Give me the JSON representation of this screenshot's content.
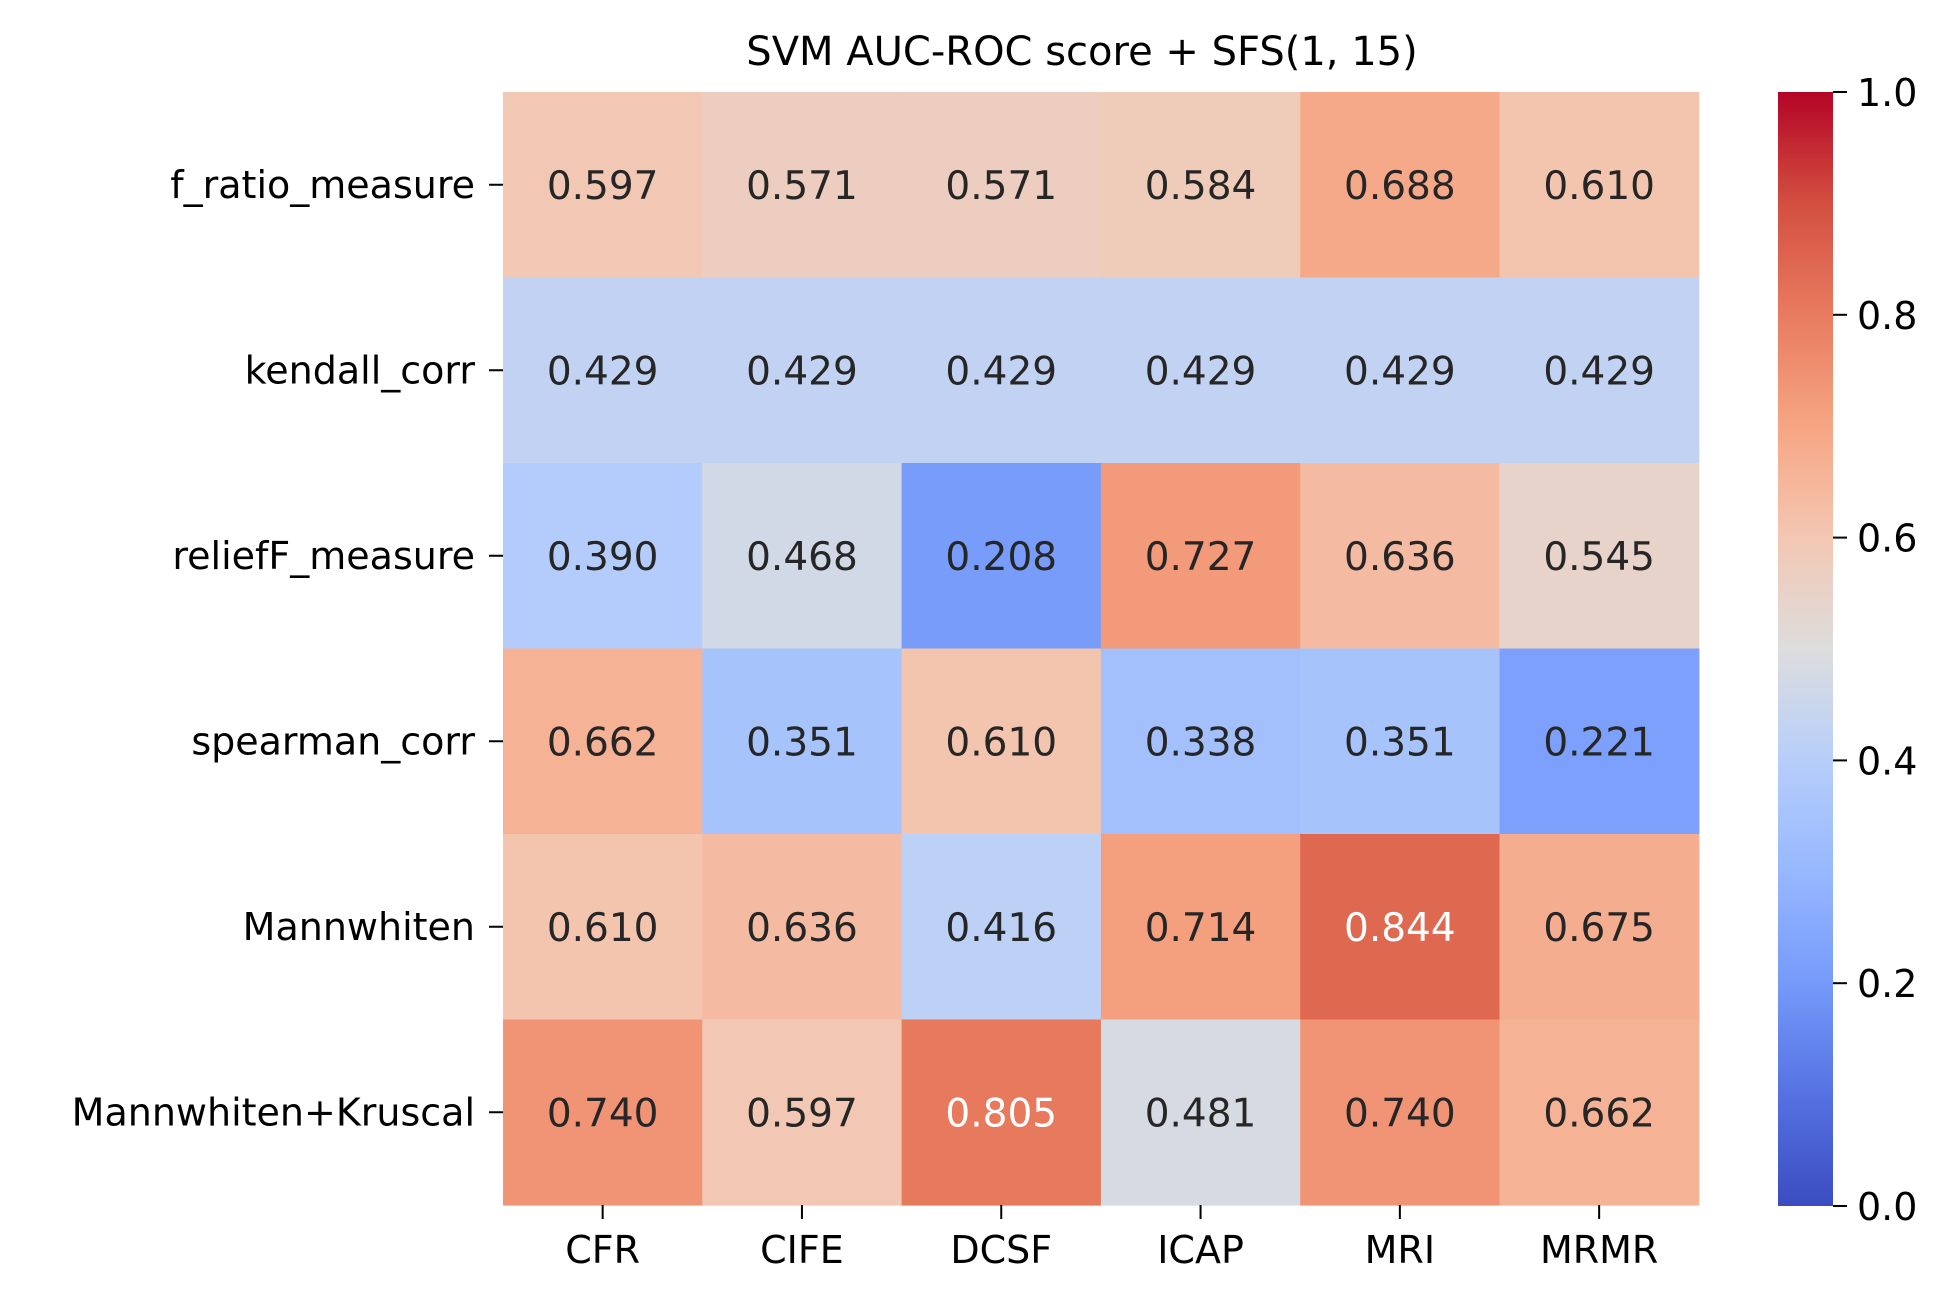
{
  "chart_data": {
    "type": "heatmap",
    "title": "SVM AUC-ROC score + SFS(1, 15)",
    "xlabel": "",
    "ylabel": "",
    "columns": [
      "CFR",
      "CIFE",
      "DCSF",
      "ICAP",
      "MRI",
      "MRMR"
    ],
    "rows": [
      "f_ratio_measure",
      "kendall_corr",
      "reliefF_measure",
      "spearman_corr",
      "Mannwhiten",
      "Mannwhiten+Kruscal"
    ],
    "values": [
      [
        0.597,
        0.571,
        0.571,
        0.584,
        0.688,
        0.61
      ],
      [
        0.429,
        0.429,
        0.429,
        0.429,
        0.429,
        0.429
      ],
      [
        0.39,
        0.468,
        0.208,
        0.727,
        0.636,
        0.545
      ],
      [
        0.662,
        0.351,
        0.61,
        0.338,
        0.351,
        0.221
      ],
      [
        0.61,
        0.636,
        0.416,
        0.714,
        0.844,
        0.675
      ],
      [
        0.74,
        0.597,
        0.805,
        0.481,
        0.74,
        0.662
      ]
    ],
    "value_format": "0.000",
    "colormap": "coolwarm",
    "vmin": 0.0,
    "vmax": 1.0,
    "colorbar_ticks": [
      "0.0",
      "0.2",
      "0.4",
      "0.6",
      "0.8",
      "1.0"
    ],
    "colorbar_tick_values": [
      0.0,
      0.2,
      0.4,
      0.6,
      0.8,
      1.0
    ],
    "grid": false,
    "legend": "colorbar-right"
  }
}
